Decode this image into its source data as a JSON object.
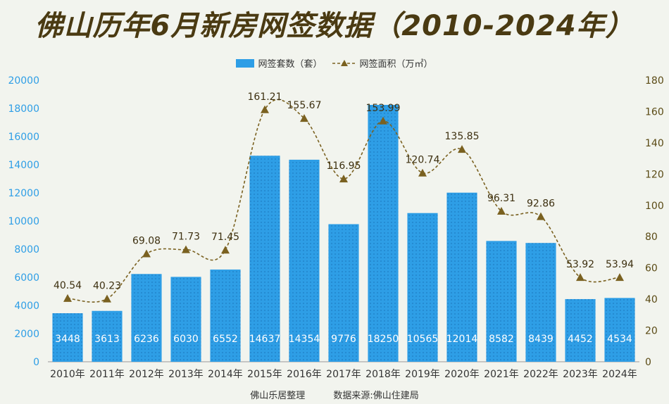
{
  "title": "佛山历年6月新房网签数据（2010-2024年）",
  "footer": {
    "credit": "佛山乐居整理",
    "source": "数据来源:佛山住建局"
  },
  "colors": {
    "bar": "#2e9ee6",
    "line": "#7a6120",
    "title": "#4a3a12",
    "axis_text": "#333333"
  },
  "chart_data": {
    "type": "bar",
    "categories": [
      "2010年",
      "2011年",
      "2012年",
      "2013年",
      "2014年",
      "2015年",
      "2016年",
      "2017年",
      "2018年",
      "2019年",
      "2020年",
      "2021年",
      "2022年",
      "2023年",
      "2024年"
    ],
    "series": [
      {
        "name": "网签套数（套）",
        "type": "bar",
        "axis": "left",
        "values": [
          3448,
          3613,
          6236,
          6030,
          6552,
          14637,
          14354,
          9776,
          18250,
          10565,
          12014,
          8582,
          8439,
          4452,
          4534
        ]
      },
      {
        "name": "网签面积（万㎡）",
        "type": "line",
        "axis": "right",
        "values": [
          40.54,
          40.23,
          69.08,
          71.73,
          71.45,
          161.21,
          155.67,
          116.95,
          153.99,
          120.74,
          135.85,
          96.31,
          92.86,
          53.92,
          53.94
        ]
      }
    ],
    "y_left": {
      "range": [
        0,
        20000
      ],
      "ticks": [
        0,
        2000,
        4000,
        6000,
        8000,
        10000,
        12000,
        14000,
        16000,
        18000,
        20000
      ]
    },
    "y_right": {
      "range": [
        0,
        180
      ],
      "ticks": [
        0,
        20,
        40,
        60,
        80,
        100,
        120,
        140,
        160,
        180
      ]
    },
    "legend": "top-center",
    "grid": false
  }
}
